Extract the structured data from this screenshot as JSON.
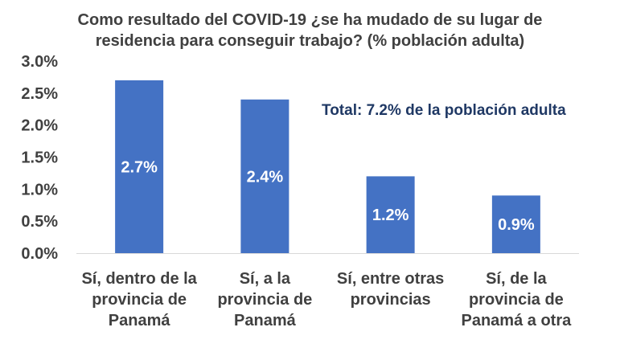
{
  "chart_data": {
    "type": "bar",
    "title": "Como resultado del COVID-19 ¿se ha mudado de su lugar de\nresidencia para conseguir trabajo? (% población adulta)",
    "annotation": "Total: 7.2% de la población adulta",
    "categories": [
      [
        "Sí, dentro de la",
        "provincia de",
        "Panamá"
      ],
      [
        "Sí, a la",
        "provincia de",
        "Panamá"
      ],
      [
        "Sí, entre otras",
        "provincias"
      ],
      [
        "Sí, de la",
        "provincia de",
        "Panamá a otra"
      ]
    ],
    "values": [
      2.7,
      2.4,
      1.2,
      0.9
    ],
    "data_labels": [
      "2.7%",
      "2.4%",
      "1.2%",
      "0.9%"
    ],
    "ylim": [
      0,
      3.0
    ],
    "yticks": [
      "0.0%",
      "0.5%",
      "1.0%",
      "1.5%",
      "2.0%",
      "2.5%",
      "3.0%"
    ],
    "bar_color": "#4472C4",
    "annotation_color": "#1F3864",
    "grid": false,
    "legend": "none"
  }
}
